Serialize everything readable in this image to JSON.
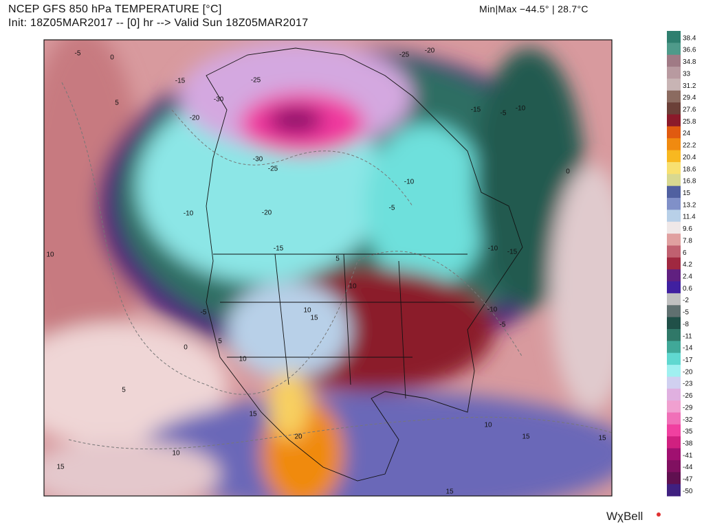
{
  "header": {
    "title": "NCEP GFS 850 hPa TEMPERATURE [°C]",
    "subtitle": "Init: 18Z05MAR2017 -- [0] hr --> Valid Sun 18Z05MAR2017",
    "min_max": "Min|Max −44.5° | 28.7°C"
  },
  "colorbar": {
    "labels": [
      38.4,
      36.6,
      34.8,
      33,
      31.2,
      29.4,
      27.6,
      25.8,
      24,
      22.2,
      20.4,
      18.6,
      16.8,
      15,
      13.2,
      11.4,
      9.6,
      7.8,
      6,
      4.2,
      2.4,
      0.6,
      -2,
      -5,
      -8,
      -11,
      -14,
      -17,
      -20,
      -23,
      -26,
      -29,
      -32,
      -35,
      -38,
      -41,
      -44,
      -47,
      -50
    ],
    "colors": [
      "#2f7f6f",
      "#4f9a8a",
      "#a07a85",
      "#b89aa0",
      "#c8b4b4",
      "#8b6b60",
      "#6b4038",
      "#8b1a2a",
      "#e05a10",
      "#f08a10",
      "#f8b820",
      "#f8e070",
      "#d8d890",
      "#5060a0",
      "#8090c8",
      "#b8d0e8",
      "#f0e8e8",
      "#e0a0a0",
      "#c06070",
      "#a02840",
      "#602080",
      "#4020a0",
      "#c0c0c0",
      "#607070",
      "#205048",
      "#307868",
      "#40a898",
      "#60d8d0",
      "#a0f0f0",
      "#d0d0f0",
      "#e0b0e0",
      "#f0a0d0",
      "#f070b8",
      "#f040a0",
      "#d02080",
      "#a01070",
      "#801060",
      "#601050",
      "#402080"
    ]
  },
  "contour_labels": [
    -5,
    0,
    5,
    -15,
    -25,
    -30,
    -20,
    -30,
    -25,
    -10,
    -20,
    -15,
    10,
    -5,
    0,
    5,
    10,
    5,
    10,
    15,
    15,
    20,
    10,
    5,
    -10,
    -5,
    -15,
    -10,
    -10,
    -5,
    -25,
    -20,
    -10,
    -5,
    -15,
    0,
    10,
    15,
    15,
    15,
    10,
    15
  ],
  "logo": "WχBell"
}
